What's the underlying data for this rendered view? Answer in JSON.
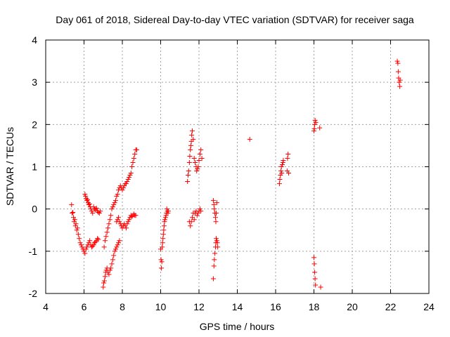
{
  "chart_data": {
    "type": "scatter",
    "title": "Day 061 of 2018, Sidereal Day-to-day VTEC variation (SDTVAR) for receiver saga",
    "xlabel": "GPS time / hours",
    "ylabel": "SDTVAR / TECUs",
    "xlim": [
      4,
      24
    ],
    "ylim": [
      -2,
      4
    ],
    "xticks": [
      4,
      6,
      8,
      10,
      12,
      14,
      16,
      18,
      20,
      22,
      24
    ],
    "yticks": [
      -2,
      -1,
      0,
      1,
      2,
      3,
      4
    ],
    "xtick_labels": [
      "4",
      "6",
      "8",
      "10",
      "12",
      "14",
      "16",
      "18",
      "20",
      "22",
      "24"
    ],
    "ytick_labels": [
      "-2",
      "-1",
      "0",
      "1",
      "2",
      "3",
      "4"
    ],
    "grid": true,
    "marker": "plus",
    "colors": {
      "series": "#ff0000",
      "grid": "#a0a0a0",
      "axes": "#000000"
    },
    "series": [
      {
        "points": [
          [
            5.35,
            0.1
          ],
          [
            5.38,
            -0.1
          ],
          [
            5.42,
            -0.08
          ],
          [
            5.45,
            -0.2
          ],
          [
            5.48,
            -0.3
          ],
          [
            5.52,
            -0.25
          ],
          [
            5.55,
            -0.4
          ],
          [
            5.58,
            -0.35
          ],
          [
            5.62,
            -0.5
          ],
          [
            5.66,
            -0.45
          ],
          [
            5.7,
            -0.6
          ],
          [
            5.75,
            -0.7
          ],
          [
            5.8,
            -0.8
          ],
          [
            5.85,
            -0.85
          ],
          [
            5.9,
            -0.9
          ],
          [
            5.95,
            -0.95
          ],
          [
            6.0,
            -1.0
          ],
          [
            6.05,
            -1.05
          ],
          [
            6.1,
            -0.95
          ],
          [
            6.15,
            -0.9
          ],
          [
            6.2,
            -0.85
          ],
          [
            6.25,
            -0.8
          ],
          [
            6.3,
            -0.75
          ],
          [
            6.35,
            -0.85
          ],
          [
            6.4,
            -0.9
          ],
          [
            6.45,
            -0.88
          ],
          [
            6.5,
            -0.85
          ],
          [
            6.55,
            -0.8
          ],
          [
            6.6,
            -0.78
          ],
          [
            6.65,
            -0.75
          ],
          [
            6.7,
            -0.7
          ],
          [
            6.75,
            -0.72
          ],
          [
            6.05,
            0.35
          ],
          [
            6.08,
            0.3
          ],
          [
            6.12,
            0.25
          ],
          [
            6.15,
            0.2
          ],
          [
            6.18,
            0.22
          ],
          [
            6.22,
            0.15
          ],
          [
            6.25,
            0.1
          ],
          [
            6.28,
            0.12
          ],
          [
            6.32,
            0.05
          ],
          [
            6.35,
            0.0
          ],
          [
            6.4,
            -0.05
          ],
          [
            6.45,
            -0.1
          ],
          [
            6.5,
            0.05
          ],
          [
            6.55,
            0.0
          ],
          [
            6.6,
            -0.02
          ],
          [
            6.65,
            0.02
          ],
          [
            6.7,
            -0.05
          ],
          [
            6.75,
            -0.08
          ],
          [
            6.8,
            -0.1
          ],
          [
            6.85,
            -0.05
          ],
          [
            7.0,
            -1.85
          ],
          [
            7.03,
            -1.75
          ],
          [
            7.06,
            -1.7
          ],
          [
            7.1,
            -1.6
          ],
          [
            7.13,
            -1.5
          ],
          [
            7.16,
            -1.45
          ],
          [
            7.2,
            -1.4
          ],
          [
            7.25,
            -1.5
          ],
          [
            7.3,
            -1.55
          ],
          [
            7.35,
            -1.45
          ],
          [
            7.4,
            -1.4
          ],
          [
            7.45,
            -1.3
          ],
          [
            7.5,
            -1.2
          ],
          [
            7.55,
            -1.1
          ],
          [
            7.6,
            -1.0
          ],
          [
            7.65,
            -0.95
          ],
          [
            7.7,
            -0.9
          ],
          [
            7.75,
            -0.85
          ],
          [
            7.8,
            -0.8
          ],
          [
            7.85,
            -0.75
          ],
          [
            7.05,
            -0.9
          ],
          [
            7.1,
            -0.75
          ],
          [
            7.15,
            -0.65
          ],
          [
            7.2,
            -0.55
          ],
          [
            7.25,
            -0.45
          ],
          [
            7.3,
            -0.35
          ],
          [
            7.35,
            -0.25
          ],
          [
            7.4,
            -0.15
          ],
          [
            7.45,
            0.0
          ],
          [
            7.5,
            0.05
          ],
          [
            7.55,
            0.1
          ],
          [
            7.6,
            0.15
          ],
          [
            7.65,
            0.2
          ],
          [
            7.7,
            0.3
          ],
          [
            7.75,
            0.35
          ],
          [
            7.8,
            0.45
          ],
          [
            7.85,
            0.5
          ],
          [
            7.9,
            0.55
          ],
          [
            7.95,
            0.5
          ],
          [
            8.0,
            0.45
          ],
          [
            8.05,
            0.5
          ],
          [
            8.1,
            0.55
          ],
          [
            8.15,
            0.6
          ],
          [
            8.2,
            0.6
          ],
          [
            8.25,
            0.65
          ],
          [
            8.3,
            0.7
          ],
          [
            8.35,
            0.75
          ],
          [
            8.4,
            0.8
          ],
          [
            8.45,
            0.85
          ],
          [
            8.5,
            1.0
          ],
          [
            8.55,
            1.1
          ],
          [
            8.6,
            1.2
          ],
          [
            8.65,
            1.3
          ],
          [
            8.7,
            1.4
          ],
          [
            8.75,
            1.4
          ],
          [
            7.7,
            -0.3
          ],
          [
            7.75,
            -0.25
          ],
          [
            7.8,
            -0.2
          ],
          [
            7.85,
            -0.3
          ],
          [
            7.9,
            -0.35
          ],
          [
            7.95,
            -0.4
          ],
          [
            8.0,
            -0.45
          ],
          [
            8.05,
            -0.4
          ],
          [
            8.1,
            -0.35
          ],
          [
            8.15,
            -0.4
          ],
          [
            8.2,
            -0.45
          ],
          [
            8.25,
            -0.35
          ],
          [
            8.3,
            -0.3
          ],
          [
            8.35,
            -0.25
          ],
          [
            8.4,
            -0.2
          ],
          [
            8.45,
            -0.15
          ],
          [
            8.5,
            -0.18
          ],
          [
            8.55,
            -0.15
          ],
          [
            8.6,
            -0.12
          ],
          [
            8.65,
            -0.15
          ],
          [
            8.7,
            -0.15
          ],
          [
            10.0,
            -0.95
          ],
          [
            10.02,
            -1.2
          ],
          [
            10.04,
            -1.4
          ],
          [
            10.06,
            -1.25
          ],
          [
            10.08,
            -0.9
          ],
          [
            10.1,
            -0.8
          ],
          [
            10.12,
            -0.7
          ],
          [
            10.14,
            -0.6
          ],
          [
            10.16,
            -0.5
          ],
          [
            10.18,
            -0.4
          ],
          [
            10.2,
            -0.3
          ],
          [
            10.22,
            -0.25
          ],
          [
            10.25,
            -0.2
          ],
          [
            10.28,
            -0.15
          ],
          [
            10.3,
            -0.1
          ],
          [
            10.32,
            0.0
          ],
          [
            10.35,
            -0.05
          ],
          [
            10.38,
            -0.1
          ],
          [
            10.4,
            -0.05
          ],
          [
            11.4,
            0.65
          ],
          [
            11.43,
            0.8
          ],
          [
            11.46,
            0.9
          ],
          [
            11.5,
            1.1
          ],
          [
            11.52,
            1.25
          ],
          [
            11.55,
            1.4
          ],
          [
            11.58,
            1.5
          ],
          [
            11.6,
            1.6
          ],
          [
            11.62,
            1.75
          ],
          [
            11.65,
            1.85
          ],
          [
            11.7,
            1.65
          ],
          [
            11.75,
            1.2
          ],
          [
            11.8,
            1.1
          ],
          [
            11.85,
            1.0
          ],
          [
            11.88,
            0.9
          ],
          [
            11.92,
            0.95
          ],
          [
            11.96,
            1.0
          ],
          [
            12.0,
            1.15
          ],
          [
            12.05,
            1.3
          ],
          [
            12.1,
            1.4
          ],
          [
            12.15,
            1.2
          ],
          [
            11.5,
            -0.3
          ],
          [
            11.55,
            -0.4
          ],
          [
            11.6,
            -0.3
          ],
          [
            11.65,
            -0.2
          ],
          [
            11.7,
            -0.1
          ],
          [
            11.75,
            -0.25
          ],
          [
            11.8,
            -0.1
          ],
          [
            11.85,
            -0.05
          ],
          [
            11.9,
            -0.15
          ],
          [
            11.95,
            -0.1
          ],
          [
            12.0,
            -0.05
          ],
          [
            12.05,
            0.0
          ],
          [
            12.1,
            -0.05
          ],
          [
            12.75,
            -1.65
          ],
          [
            12.78,
            -1.35
          ],
          [
            12.8,
            -1.2
          ],
          [
            12.83,
            -1.05
          ],
          [
            12.86,
            -0.9
          ],
          [
            12.88,
            -0.8
          ],
          [
            12.9,
            -0.7
          ],
          [
            12.93,
            -0.75
          ],
          [
            12.96,
            -0.8
          ],
          [
            12.98,
            -0.9
          ],
          [
            12.75,
            0.2
          ],
          [
            12.78,
            0.1
          ],
          [
            12.8,
            0.0
          ],
          [
            12.83,
            -0.1
          ],
          [
            12.86,
            -0.2
          ],
          [
            12.88,
            -0.3
          ],
          [
            12.9,
            -0.1
          ],
          [
            12.93,
            0.15
          ],
          [
            14.65,
            1.65
          ],
          [
            16.2,
            0.6
          ],
          [
            16.22,
            0.7
          ],
          [
            16.25,
            0.8
          ],
          [
            16.28,
            0.9
          ],
          [
            16.3,
            1.0
          ],
          [
            16.32,
            0.85
          ],
          [
            16.35,
            1.05
          ],
          [
            16.38,
            1.1
          ],
          [
            16.4,
            1.15
          ],
          [
            16.6,
            0.9
          ],
          [
            16.62,
            1.2
          ],
          [
            16.65,
            1.3
          ],
          [
            16.68,
            0.85
          ],
          [
            18.0,
            -1.15
          ],
          [
            18.02,
            -1.3
          ],
          [
            18.04,
            -1.5
          ],
          [
            18.06,
            -1.65
          ],
          [
            18.08,
            -1.8
          ],
          [
            18.0,
            1.85
          ],
          [
            18.02,
            1.9
          ],
          [
            18.04,
            2.0
          ],
          [
            18.06,
            2.1
          ],
          [
            18.1,
            2.05
          ],
          [
            18.3,
            1.92
          ],
          [
            18.35,
            -1.85
          ],
          [
            22.35,
            3.5
          ],
          [
            22.38,
            3.45
          ],
          [
            22.4,
            3.25
          ],
          [
            22.42,
            3.1
          ],
          [
            22.45,
            3.0
          ],
          [
            22.48,
            2.9
          ],
          [
            22.5,
            3.05
          ]
        ]
      }
    ]
  }
}
